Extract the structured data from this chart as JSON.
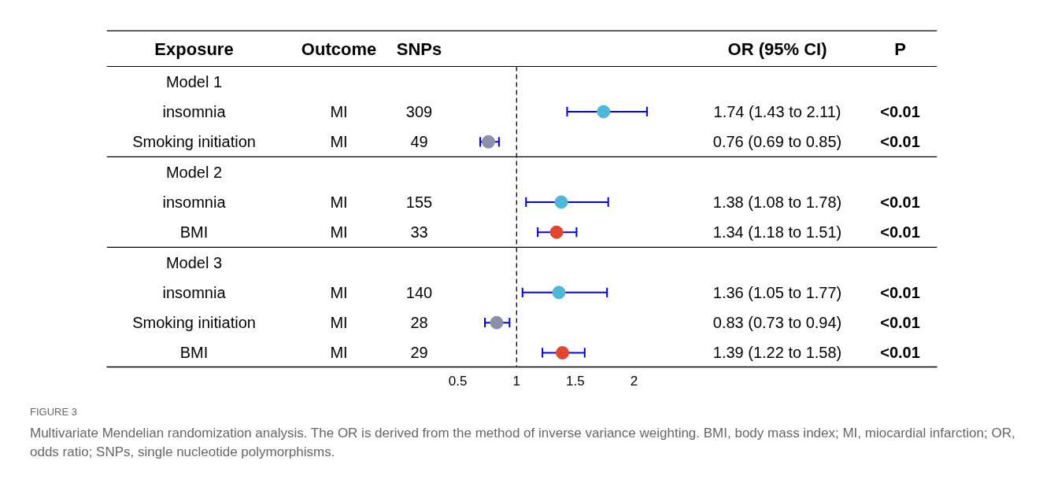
{
  "chart_data": {
    "type": "scatter",
    "orientation": "horizontal",
    "marker": "circle",
    "grid": false,
    "categories": [
      "Model 1",
      "insomnia",
      "Smoking initiation",
      "Model 2",
      "insomnia",
      "BMI",
      "Model 3",
      "insomnia",
      "Smoking initiation",
      "BMI"
    ],
    "values": [
      null,
      1.74,
      0.76,
      null,
      1.38,
      1.34,
      null,
      1.36,
      0.83,
      1.39
    ],
    "errors": [
      null,
      [
        1.43,
        2.11
      ],
      [
        0.69,
        0.85
      ],
      null,
      [
        1.08,
        1.78
      ],
      [
        1.18,
        1.51
      ],
      null,
      [
        1.05,
        1.77
      ],
      [
        0.73,
        0.94
      ],
      [
        1.22,
        1.58
      ]
    ],
    "colors": [
      null,
      "#4fb8d8",
      "#8b90a8",
      null,
      "#4fb8d8",
      "#e3462f",
      null,
      "#4fb8d8",
      "#8b90a8",
      "#e3462f"
    ],
    "xlim": [
      -2.49,
      4.58
    ],
    "xticks": [
      0.5,
      1,
      1.5,
      2
    ],
    "ref_lines": [
      {
        "axis": "x",
        "value": 1,
        "line_style": "dashed",
        "color": "#000000"
      }
    ],
    "annotations": [
      "Exposure",
      "Outcome",
      "SNPs",
      "OR (95% CI)",
      "P",
      "MI",
      "309",
      "1.74 (1.43 to 2.11)",
      "<0.01",
      "MI",
      "49",
      "0.76 (0.69 to 0.85)",
      "<0.01",
      "MI",
      "155",
      "1.38 (1.08 to 1.78)",
      "<0.01",
      "MI",
      "33",
      "1.34 (1.18 to 1.51)",
      "<0.01",
      "MI",
      "140",
      "1.36 (1.05 to 1.77)",
      "<0.01",
      "MI",
      "28",
      "0.83 (0.73 to 0.94)",
      "<0.01",
      "MI",
      "29",
      "1.39 (1.22 to 1.58)",
      "<0.01",
      "FIGURE 3",
      "Multivariate Mendelian randomization analysis. The OR is derived from the method of inverse variance weighting. BMI, body mass index; MI, miocardial infarction; OR, odds ratio; SNPs, single nucleotide polymorphisms."
    ]
  }
}
